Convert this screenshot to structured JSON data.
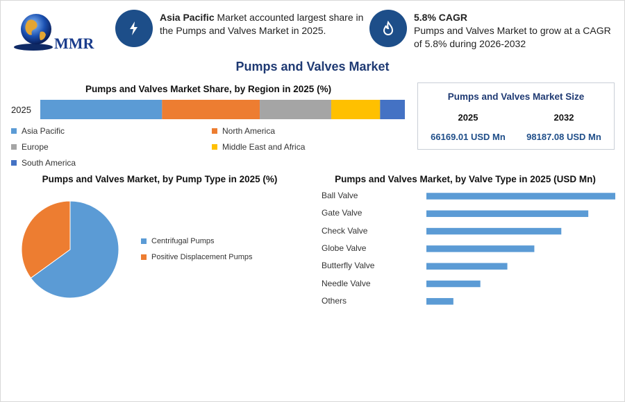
{
  "logo": {
    "text": "MMR"
  },
  "kpis": [
    {
      "bold": "Asia Pacific",
      "rest": " Market accounted largest share in the Pumps and Valves Market in 2025.",
      "icon": "lightning-icon"
    },
    {
      "bold": "5.8% CAGR",
      "rest": "Pumps and Valves Market to grow at a CAGR of 5.8% during 2026-2032",
      "icon": "flame-icon"
    }
  ],
  "main_title": "Pumps and Valves Market",
  "size_box": {
    "title": "Pumps and Valves Market Size",
    "years": [
      "2025",
      "2032"
    ],
    "values": [
      "66169.01 USD Mn",
      "98187.08 USD Mn"
    ]
  },
  "colors": {
    "asia_pacific": "#5b9bd5",
    "north_america": "#ed7d31",
    "europe": "#a5a5a5",
    "middle_east": "#ffc000",
    "south_america": "#4472c4",
    "accent": "#1d4e89"
  },
  "chart_data": [
    {
      "type": "bar",
      "orientation": "horizontal-stacked",
      "title": "Pumps and Valves Market Share, by Region in 2025 (%)",
      "categories": [
        "2025"
      ],
      "series": [
        {
          "name": "Asia Pacific",
          "values": [
            33.4
          ],
          "color": "#5b9bd5"
        },
        {
          "name": "North America",
          "values": [
            26.8
          ],
          "color": "#ed7d31"
        },
        {
          "name": "Europe",
          "values": [
            19.6
          ],
          "color": "#a5a5a5"
        },
        {
          "name": "Middle East and Africa",
          "values": [
            13.4
          ],
          "color": "#ffc000"
        },
        {
          "name": "South America",
          "values": [
            6.8
          ],
          "color": "#4472c4"
        }
      ],
      "legend_position": "bottom"
    },
    {
      "type": "pie",
      "title": "Pumps and Valves Market, by Pump Type in 2025 (%)",
      "labels": [
        "Centrifugal Pumps",
        "Positive Displacement Pumps"
      ],
      "values": [
        65,
        35
      ],
      "colors": [
        "#5b9bd5",
        "#ed7d31"
      ],
      "legend_position": "right"
    },
    {
      "type": "bar",
      "orientation": "horizontal",
      "title": "Pumps and Valves Market, by Valve Type in 2025 (USD Mn)",
      "categories": [
        "Ball Valve",
        "Gate Valve",
        "Check Valve",
        "Globe Valve",
        "Butterfly Valve",
        "Needle Valve",
        "Others"
      ],
      "values": [
        7000,
        6000,
        5000,
        4000,
        3000,
        2000,
        1000
      ],
      "color": "#5b9bd5",
      "xlim": [
        0,
        7000
      ]
    }
  ]
}
